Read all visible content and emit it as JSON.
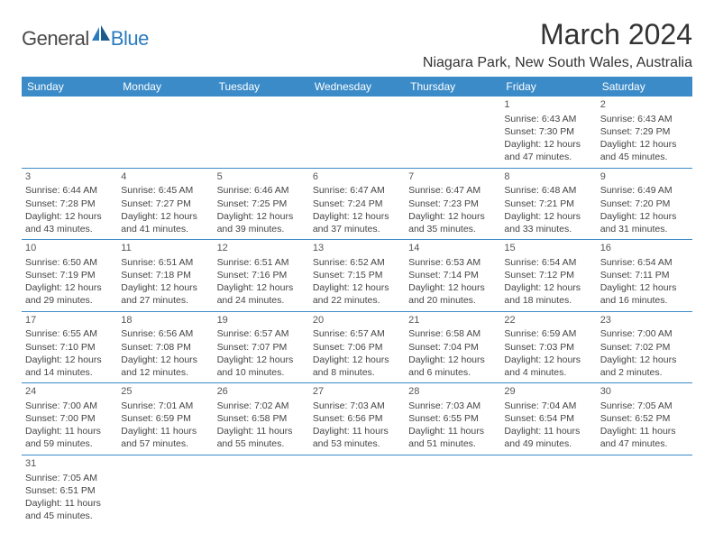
{
  "brand": {
    "general": "General",
    "blue": "Blue"
  },
  "title": "March 2024",
  "location": "Niagara Park, New South Wales, Australia",
  "colors": {
    "header_bg": "#3b8bc8",
    "header_text": "#ffffff",
    "row_border": "#3b8bc8",
    "text": "#444444",
    "logo_blue": "#2b7bbf",
    "logo_gray": "#4a4a4a"
  },
  "weekdays": [
    "Sunday",
    "Monday",
    "Tuesday",
    "Wednesday",
    "Thursday",
    "Friday",
    "Saturday"
  ],
  "weeks": [
    [
      null,
      null,
      null,
      null,
      null,
      {
        "n": "1",
        "sr": "Sunrise: 6:43 AM",
        "ss": "Sunset: 7:30 PM",
        "d1": "Daylight: 12 hours",
        "d2": "and 47 minutes."
      },
      {
        "n": "2",
        "sr": "Sunrise: 6:43 AM",
        "ss": "Sunset: 7:29 PM",
        "d1": "Daylight: 12 hours",
        "d2": "and 45 minutes."
      }
    ],
    [
      {
        "n": "3",
        "sr": "Sunrise: 6:44 AM",
        "ss": "Sunset: 7:28 PM",
        "d1": "Daylight: 12 hours",
        "d2": "and 43 minutes."
      },
      {
        "n": "4",
        "sr": "Sunrise: 6:45 AM",
        "ss": "Sunset: 7:27 PM",
        "d1": "Daylight: 12 hours",
        "d2": "and 41 minutes."
      },
      {
        "n": "5",
        "sr": "Sunrise: 6:46 AM",
        "ss": "Sunset: 7:25 PM",
        "d1": "Daylight: 12 hours",
        "d2": "and 39 minutes."
      },
      {
        "n": "6",
        "sr": "Sunrise: 6:47 AM",
        "ss": "Sunset: 7:24 PM",
        "d1": "Daylight: 12 hours",
        "d2": "and 37 minutes."
      },
      {
        "n": "7",
        "sr": "Sunrise: 6:47 AM",
        "ss": "Sunset: 7:23 PM",
        "d1": "Daylight: 12 hours",
        "d2": "and 35 minutes."
      },
      {
        "n": "8",
        "sr": "Sunrise: 6:48 AM",
        "ss": "Sunset: 7:21 PM",
        "d1": "Daylight: 12 hours",
        "d2": "and 33 minutes."
      },
      {
        "n": "9",
        "sr": "Sunrise: 6:49 AM",
        "ss": "Sunset: 7:20 PM",
        "d1": "Daylight: 12 hours",
        "d2": "and 31 minutes."
      }
    ],
    [
      {
        "n": "10",
        "sr": "Sunrise: 6:50 AM",
        "ss": "Sunset: 7:19 PM",
        "d1": "Daylight: 12 hours",
        "d2": "and 29 minutes."
      },
      {
        "n": "11",
        "sr": "Sunrise: 6:51 AM",
        "ss": "Sunset: 7:18 PM",
        "d1": "Daylight: 12 hours",
        "d2": "and 27 minutes."
      },
      {
        "n": "12",
        "sr": "Sunrise: 6:51 AM",
        "ss": "Sunset: 7:16 PM",
        "d1": "Daylight: 12 hours",
        "d2": "and 24 minutes."
      },
      {
        "n": "13",
        "sr": "Sunrise: 6:52 AM",
        "ss": "Sunset: 7:15 PM",
        "d1": "Daylight: 12 hours",
        "d2": "and 22 minutes."
      },
      {
        "n": "14",
        "sr": "Sunrise: 6:53 AM",
        "ss": "Sunset: 7:14 PM",
        "d1": "Daylight: 12 hours",
        "d2": "and 20 minutes."
      },
      {
        "n": "15",
        "sr": "Sunrise: 6:54 AM",
        "ss": "Sunset: 7:12 PM",
        "d1": "Daylight: 12 hours",
        "d2": "and 18 minutes."
      },
      {
        "n": "16",
        "sr": "Sunrise: 6:54 AM",
        "ss": "Sunset: 7:11 PM",
        "d1": "Daylight: 12 hours",
        "d2": "and 16 minutes."
      }
    ],
    [
      {
        "n": "17",
        "sr": "Sunrise: 6:55 AM",
        "ss": "Sunset: 7:10 PM",
        "d1": "Daylight: 12 hours",
        "d2": "and 14 minutes."
      },
      {
        "n": "18",
        "sr": "Sunrise: 6:56 AM",
        "ss": "Sunset: 7:08 PM",
        "d1": "Daylight: 12 hours",
        "d2": "and 12 minutes."
      },
      {
        "n": "19",
        "sr": "Sunrise: 6:57 AM",
        "ss": "Sunset: 7:07 PM",
        "d1": "Daylight: 12 hours",
        "d2": "and 10 minutes."
      },
      {
        "n": "20",
        "sr": "Sunrise: 6:57 AM",
        "ss": "Sunset: 7:06 PM",
        "d1": "Daylight: 12 hours",
        "d2": "and 8 minutes."
      },
      {
        "n": "21",
        "sr": "Sunrise: 6:58 AM",
        "ss": "Sunset: 7:04 PM",
        "d1": "Daylight: 12 hours",
        "d2": "and 6 minutes."
      },
      {
        "n": "22",
        "sr": "Sunrise: 6:59 AM",
        "ss": "Sunset: 7:03 PM",
        "d1": "Daylight: 12 hours",
        "d2": "and 4 minutes."
      },
      {
        "n": "23",
        "sr": "Sunrise: 7:00 AM",
        "ss": "Sunset: 7:02 PM",
        "d1": "Daylight: 12 hours",
        "d2": "and 2 minutes."
      }
    ],
    [
      {
        "n": "24",
        "sr": "Sunrise: 7:00 AM",
        "ss": "Sunset: 7:00 PM",
        "d1": "Daylight: 11 hours",
        "d2": "and 59 minutes."
      },
      {
        "n": "25",
        "sr": "Sunrise: 7:01 AM",
        "ss": "Sunset: 6:59 PM",
        "d1": "Daylight: 11 hours",
        "d2": "and 57 minutes."
      },
      {
        "n": "26",
        "sr": "Sunrise: 7:02 AM",
        "ss": "Sunset: 6:58 PM",
        "d1": "Daylight: 11 hours",
        "d2": "and 55 minutes."
      },
      {
        "n": "27",
        "sr": "Sunrise: 7:03 AM",
        "ss": "Sunset: 6:56 PM",
        "d1": "Daylight: 11 hours",
        "d2": "and 53 minutes."
      },
      {
        "n": "28",
        "sr": "Sunrise: 7:03 AM",
        "ss": "Sunset: 6:55 PM",
        "d1": "Daylight: 11 hours",
        "d2": "and 51 minutes."
      },
      {
        "n": "29",
        "sr": "Sunrise: 7:04 AM",
        "ss": "Sunset: 6:54 PM",
        "d1": "Daylight: 11 hours",
        "d2": "and 49 minutes."
      },
      {
        "n": "30",
        "sr": "Sunrise: 7:05 AM",
        "ss": "Sunset: 6:52 PM",
        "d1": "Daylight: 11 hours",
        "d2": "and 47 minutes."
      }
    ],
    [
      {
        "n": "31",
        "sr": "Sunrise: 7:05 AM",
        "ss": "Sunset: 6:51 PM",
        "d1": "Daylight: 11 hours",
        "d2": "and 45 minutes."
      },
      null,
      null,
      null,
      null,
      null,
      null
    ]
  ]
}
